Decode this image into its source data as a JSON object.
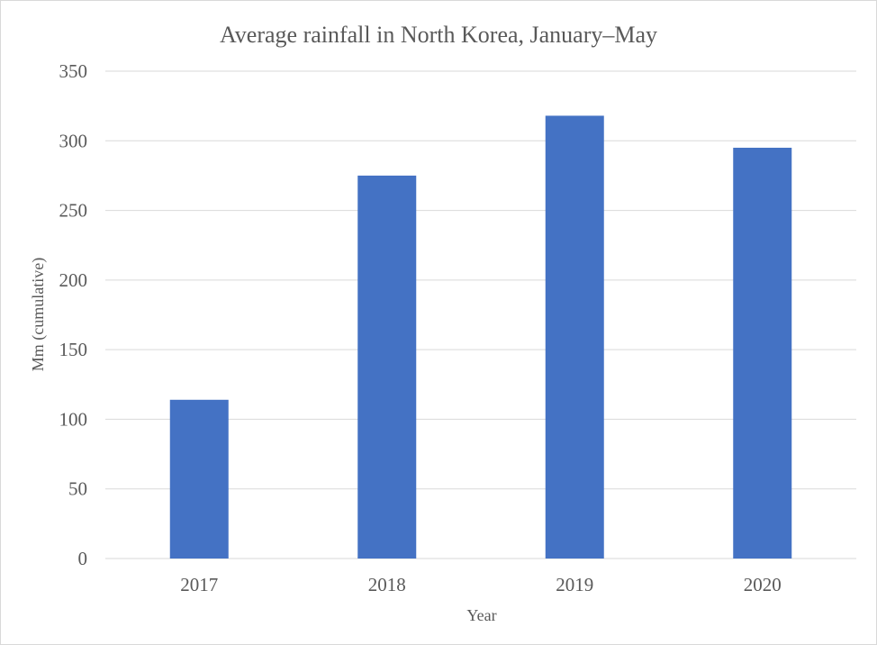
{
  "chart_data": {
    "type": "bar",
    "title": "Average rainfall in North Korea, January–May",
    "xlabel": "Year",
    "ylabel": "Mm (cumulative)",
    "categories": [
      "2017",
      "2018",
      "2019",
      "2020"
    ],
    "series": [
      {
        "values": [
          114,
          275,
          318,
          295
        ]
      }
    ],
    "ylim": [
      0,
      350
    ],
    "yticks": [
      "0",
      "50",
      "100",
      "150",
      "200",
      "250",
      "300",
      "350"
    ],
    "grid": true,
    "legend": "none",
    "colors": {
      "bar": "#4472c4",
      "grid": "#d9d9d9",
      "text": "#595959"
    }
  }
}
